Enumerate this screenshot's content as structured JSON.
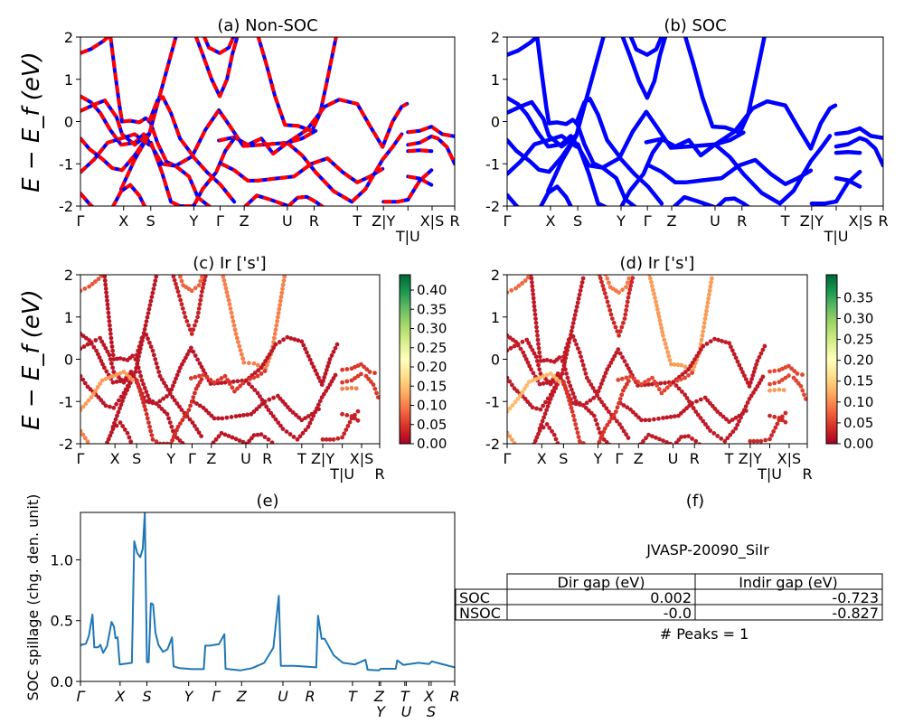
{
  "figure": {
    "panels": {
      "a": {
        "title": "(a) Non-SOC",
        "ylabel": "E − E_f (eV)"
      },
      "b": {
        "title": "(b) SOC"
      },
      "c": {
        "title": "(c)  Ir ['s']",
        "ylabel": "E − E_f (eV)"
      },
      "d": {
        "title": "(d) Ir ['s']"
      },
      "e": {
        "title": "(e)",
        "ylabel": "SOC spillage (chg. den. unit)"
      },
      "f": {
        "title": "(f)"
      }
    }
  },
  "chart_data": [
    {
      "id": "a",
      "type": "line",
      "title": "(a) Non-SOC",
      "ylabel": "E − E_f (eV)",
      "ylim": [
        -2,
        2
      ],
      "yticks": [
        -2,
        -1,
        0,
        1,
        2
      ],
      "style": "red dashed over blue",
      "colors": {
        "dash": "#ff0000",
        "base": "#0000ff"
      },
      "kpath_ref": "bands"
    },
    {
      "id": "b",
      "type": "line",
      "title": "(b) SOC",
      "ylim": [
        -2,
        2
      ],
      "yticks": [
        -2,
        -1,
        0,
        1,
        2
      ],
      "colors": {
        "base": "#0000ff"
      },
      "kpath_ref": "bands"
    },
    {
      "id": "c",
      "type": "scatter",
      "title": "(c)  Ir ['s']",
      "ylabel": "E − E_f (eV)",
      "ylim": [
        -2,
        2
      ],
      "yticks": [
        -2,
        -1,
        0,
        1,
        2
      ],
      "colorbar": {
        "range": [
          0,
          0.44
        ],
        "ticks": [
          "0.00",
          "0.05",
          "0.10",
          "0.15",
          "0.20",
          "0.25",
          "0.30",
          "0.35",
          "0.40"
        ]
      },
      "kpath_ref": "bands"
    },
    {
      "id": "d",
      "type": "scatter",
      "title": "(d) Ir ['s']",
      "ylim": [
        -2,
        2
      ],
      "yticks": [
        -2,
        -1,
        0,
        1,
        2
      ],
      "colorbar": {
        "range": [
          0,
          0.405
        ],
        "ticks": [
          "0.00",
          "0.05",
          "0.10",
          "0.15",
          "0.20",
          "0.25",
          "0.30",
          "0.35"
        ]
      },
      "kpath_ref": "bands"
    },
    {
      "id": "e",
      "type": "line",
      "title": "(e)",
      "ylabel": "SOC spillage (chg. den. unit)",
      "ylim": [
        0,
        1.39
      ],
      "yticks": [
        "0.0",
        "0.5",
        "1.0"
      ],
      "color": "#1f77b4",
      "xticks": {
        "k": [
          0,
          0.437,
          0.733,
          1.193,
          1.493,
          1.777,
          2.233,
          2.533,
          3.0,
          3.293,
          3.31,
          3.577,
          3.593,
          3.843,
          3.867,
          4.127
        ],
        "labels": [
          "Γ",
          "X",
          "S",
          "Y",
          "Γ",
          "Z",
          "U",
          "R",
          "T",
          "Z",
          "Y",
          "T",
          "U",
          "X",
          "S",
          "R"
        ]
      },
      "x": [
        0,
        0.01,
        0.06,
        0.093,
        0.133,
        0.153,
        0.193,
        0.22,
        0.25,
        0.293,
        0.343,
        0.37,
        0.387,
        0.41,
        0.433,
        0.567,
        0.593,
        0.627,
        0.66,
        0.687,
        0.71,
        0.733,
        0.753,
        0.777,
        0.8,
        0.827,
        0.86,
        0.91,
        0.96,
        1.01,
        1.027,
        1.093,
        1.227,
        1.36,
        1.377,
        1.427,
        1.527,
        1.587,
        1.6,
        1.76,
        1.893,
        2.027,
        2.127,
        2.187,
        2.21,
        2.36,
        2.6,
        2.62,
        2.66,
        2.693,
        2.793,
        2.893,
        3.027,
        3.143,
        3.167,
        3.293,
        3.31,
        3.477,
        3.493,
        3.56,
        3.727,
        3.843,
        3.877,
        3.96,
        4.127
      ],
      "y": [
        0.3,
        0.3,
        0.31,
        0.375,
        0.55,
        0.28,
        0.28,
        0.3,
        0.235,
        0.29,
        0.49,
        0.45,
        0.355,
        0.363,
        0.14,
        0.153,
        1.153,
        1.054,
        1.022,
        1.091,
        1.387,
        0.158,
        0.158,
        0.642,
        0.635,
        0.4,
        0.3,
        0.244,
        0.264,
        0.363,
        0.124,
        0.109,
        0.101,
        0.101,
        0.294,
        0.294,
        0.306,
        0.388,
        0.104,
        0.091,
        0.109,
        0.153,
        0.277,
        0.704,
        0.128,
        0.128,
        0.116,
        0.541,
        0.351,
        0.351,
        0.215,
        0.153,
        0.14,
        0.178,
        0.096,
        0.091,
        0.104,
        0.104,
        0.173,
        0.136,
        0.153,
        0.143,
        0.165,
        0.148,
        0.116
      ]
    },
    {
      "id": "f",
      "type": "table",
      "title": "(f)",
      "caption": "JVASP-20090_SiIr",
      "columns": [
        "",
        "Dir gap (eV)",
        "Indir gap (eV)"
      ],
      "rows": [
        [
          "SOC",
          "0.002",
          "-0.723"
        ],
        [
          "NSOC",
          "-0.0",
          "-0.827"
        ]
      ],
      "footer": "# Peaks = 1"
    }
  ],
  "bands": {
    "xticks": {
      "k": [
        0,
        0.477,
        0.777,
        1.253,
        1.543,
        1.81,
        2.287,
        2.583,
        3.06,
        3.35,
        3.62,
        3.887,
        4.137
      ],
      "labels": [
        "Γ",
        "X",
        "S",
        "Y",
        "Γ",
        "Z",
        "U",
        "R",
        "T",
        "Z|Y",
        "T|U",
        "X|S",
        "R"
      ]
    },
    "colormap_RdYlGn": [
      "#a50026",
      "#d73027",
      "#f46d43",
      "#fdae61",
      "#fee08b",
      "#ffffbf",
      "#d9ef8b",
      "#a6d96a",
      "#66bd63",
      "#1a9850",
      "#006837"
    ],
    "segments": [
      {
        "w": 0.07,
        "pts": [
          [
            0,
            1.62
          ],
          [
            0.12,
            1.72
          ],
          [
            0.25,
            1.9
          ],
          [
            0.33,
            2.05
          ]
        ]
      },
      {
        "w": 0.02,
        "pts": [
          [
            0.33,
            2.05
          ],
          [
            0.38,
            1.2
          ],
          [
            0.43,
            0.4
          ],
          [
            0.46,
            0.0
          ],
          [
            0.55,
            0.02
          ],
          [
            0.65,
            -0.02
          ],
          [
            0.72,
            0.08
          ],
          [
            0.77,
            0.0
          ],
          [
            0.85,
            -0.5
          ],
          [
            0.95,
            -0.95
          ],
          [
            1.05,
            -1.05
          ],
          [
            1.24,
            -0.82
          ],
          [
            1.4,
            -1.2
          ],
          [
            1.55,
            -1.5
          ],
          [
            1.7,
            -1.9
          ]
        ]
      },
      {
        "w": 0.02,
        "pts": [
          [
            0.45,
            -1.6
          ],
          [
            0.6,
            -0.9
          ],
          [
            0.76,
            -0.3
          ],
          [
            0.9,
            0.8
          ],
          [
            1.06,
            2.05
          ]
        ]
      },
      {
        "w": 0.03,
        "pts": [
          [
            1.27,
            2.05
          ],
          [
            1.35,
            1.6
          ],
          [
            1.45,
            1.0
          ],
          [
            1.54,
            0.6
          ],
          [
            1.62,
            1.0
          ],
          [
            1.68,
            1.6
          ],
          [
            1.74,
            2.05
          ]
        ]
      },
      {
        "w": 0.08,
        "pts": [
          [
            1.36,
            2.05
          ],
          [
            1.42,
            1.75
          ],
          [
            1.54,
            1.62
          ],
          [
            1.64,
            1.75
          ],
          [
            1.7,
            2.05
          ]
        ]
      },
      {
        "w": 0.1,
        "pts": [
          [
            1.96,
            2.05
          ],
          [
            2.05,
            1.4
          ],
          [
            2.15,
            0.6
          ],
          [
            2.26,
            -0.08
          ],
          [
            2.4,
            -0.1
          ],
          [
            2.56,
            -0.22
          ],
          [
            2.65,
            0.2
          ],
          [
            2.72,
            0.9
          ],
          [
            2.83,
            2.05
          ]
        ]
      },
      {
        "w": 0.02,
        "pts": [
          [
            0.76,
            0.0
          ],
          [
            0.85,
            0.5
          ],
          [
            0.91,
            0.58
          ],
          [
            1.0,
            0.2
          ],
          [
            1.1,
            -0.4
          ],
          [
            1.24,
            -0.8
          ],
          [
            1.38,
            -0.2
          ],
          [
            1.53,
            0.27
          ],
          [
            1.65,
            -0.1
          ],
          [
            1.8,
            -0.58
          ],
          [
            2.0,
            -0.55
          ],
          [
            2.29,
            -0.5
          ],
          [
            2.5,
            -0.2
          ],
          [
            2.7,
            0.35
          ],
          [
            2.86,
            0.52
          ],
          [
            3.06,
            0.42
          ],
          [
            3.2,
            -0.1
          ],
          [
            3.34,
            -0.6
          ],
          [
            3.45,
            0.0
          ],
          [
            3.55,
            0.35
          ],
          [
            3.61,
            0.42
          ]
        ]
      },
      {
        "w": 0.02,
        "pts": [
          [
            0,
            0.6
          ],
          [
            0.12,
            0.45
          ],
          [
            0.22,
            0.2
          ],
          [
            0.33,
            -0.2
          ],
          [
            0.45,
            -0.55
          ],
          [
            0.6,
            -0.5
          ],
          [
            0.7,
            -0.3
          ],
          [
            0.78,
            -0.55
          ],
          [
            0.9,
            -1.0
          ],
          [
            1.05,
            -1.05
          ]
        ]
      },
      {
        "w": 0.02,
        "pts": [
          [
            0,
            0.25
          ],
          [
            0.15,
            0.4
          ],
          [
            0.27,
            0.5
          ],
          [
            0.4,
            0.1
          ],
          [
            0.46,
            -0.3
          ],
          [
            0.6,
            -0.55
          ],
          [
            0.75,
            -0.3
          ]
        ]
      },
      {
        "w": 0.02,
        "pts": [
          [
            0,
            -0.4
          ],
          [
            0.1,
            -0.65
          ],
          [
            0.25,
            -0.9
          ],
          [
            0.35,
            -1.1
          ],
          [
            0.46,
            -1.15
          ],
          [
            0.6,
            -0.8
          ],
          [
            0.76,
            -0.3
          ]
        ]
      },
      {
        "w": 0.12,
        "pts": [
          [
            0,
            -1.2
          ],
          [
            0.15,
            -0.9
          ],
          [
            0.3,
            -0.5
          ],
          [
            0.45,
            -0.4
          ],
          [
            0.6,
            -0.3
          ],
          [
            0.76,
            -0.55
          ]
        ]
      },
      {
        "w": 0.05,
        "pts": [
          [
            1.53,
            -0.45
          ],
          [
            1.7,
            -0.37
          ],
          [
            1.85,
            -0.55
          ],
          [
            2.0,
            -0.4
          ],
          [
            2.13,
            -0.76
          ],
          [
            2.29,
            -0.5
          ],
          [
            2.45,
            -0.4
          ],
          [
            2.6,
            -0.22
          ]
        ]
      },
      {
        "w": 0.02,
        "pts": [
          [
            1.56,
            -1.0
          ],
          [
            1.7,
            -1.15
          ],
          [
            1.85,
            -1.4
          ],
          [
            1.96,
            -1.4
          ],
          [
            2.15,
            -1.35
          ],
          [
            2.36,
            -1.3
          ],
          [
            2.55,
            -1.0
          ],
          [
            2.73,
            -0.87
          ],
          [
            2.9,
            -1.2
          ],
          [
            3.06,
            -1.44
          ],
          [
            3.2,
            -1.3
          ],
          [
            3.34,
            -1.12
          ]
        ]
      },
      {
        "w": 0.02,
        "pts": [
          [
            2.29,
            -0.51
          ],
          [
            2.45,
            -0.8
          ],
          [
            2.6,
            -1.2
          ],
          [
            2.8,
            -1.65
          ],
          [
            3.0,
            -1.9
          ],
          [
            3.15,
            -1.6
          ],
          [
            3.34,
            -0.9
          ],
          [
            3.45,
            -0.6
          ],
          [
            3.55,
            -0.3
          ]
        ]
      },
      {
        "w": 0.02,
        "pts": [
          [
            1.8,
            -2.05
          ],
          [
            1.95,
            -1.75
          ],
          [
            2.1,
            -1.85
          ],
          [
            2.3,
            -2.0
          ],
          [
            2.4,
            -1.8
          ],
          [
            2.5,
            -1.78
          ],
          [
            2.6,
            -1.9
          ],
          [
            2.7,
            -2.05
          ]
        ]
      },
      {
        "w": 0.02,
        "pts": [
          [
            0.35,
            -2.05
          ],
          [
            0.45,
            -1.65
          ],
          [
            0.55,
            -1.5
          ],
          [
            0.65,
            -1.75
          ],
          [
            0.72,
            -2.05
          ]
        ]
      },
      {
        "w": 0.1,
        "pts": [
          [
            0,
            -1.7
          ],
          [
            0.1,
            -1.95
          ],
          [
            0.15,
            -2.05
          ]
        ]
      },
      {
        "w": 0.02,
        "pts": [
          [
            1.05,
            -1.05
          ],
          [
            1.2,
            -1.3
          ],
          [
            1.3,
            -1.8
          ],
          [
            1.45,
            -2.05
          ]
        ]
      },
      {
        "w": 0.04,
        "pts": [
          [
            0.78,
            -0.5
          ],
          [
            0.9,
            -1.2
          ],
          [
            1.0,
            -1.9
          ],
          [
            1.1,
            -2.0
          ],
          [
            1.25,
            -2.0
          ],
          [
            1.35,
            -1.6
          ],
          [
            1.5,
            -1.2
          ],
          [
            1.6,
            -0.7
          ],
          [
            1.7,
            -0.4
          ]
        ]
      },
      {
        "w": 0.05,
        "pts": [
          [
            3.62,
            -0.25
          ],
          [
            3.75,
            -0.22
          ],
          [
            3.88,
            -0.12
          ],
          [
            4.0,
            -0.3
          ],
          [
            4.137,
            -0.35
          ]
        ]
      },
      {
        "w": 0.05,
        "pts": [
          [
            3.62,
            -0.55
          ],
          [
            3.75,
            -0.5
          ],
          [
            3.88,
            -0.35
          ],
          [
            3.95,
            -0.4
          ],
          [
            4.05,
            -0.6
          ],
          [
            4.137,
            -1.0
          ]
        ]
      },
      {
        "w": 0.1,
        "pts": [
          [
            3.62,
            -0.7
          ],
          [
            3.75,
            -0.68
          ],
          [
            3.88,
            -0.7
          ]
        ]
      },
      {
        "w": 0.03,
        "pts": [
          [
            3.62,
            -1.3
          ],
          [
            3.75,
            -1.35
          ],
          [
            3.88,
            -1.5
          ]
        ]
      },
      {
        "w": 0.03,
        "pts": [
          [
            3.62,
            -1.85
          ],
          [
            3.75,
            -1.4
          ],
          [
            3.88,
            -1.15
          ]
        ]
      },
      {
        "w": 0.03,
        "pts": [
          [
            3.35,
            -1.9
          ],
          [
            3.5,
            -1.9
          ],
          [
            3.62,
            -1.85
          ]
        ]
      }
    ]
  }
}
